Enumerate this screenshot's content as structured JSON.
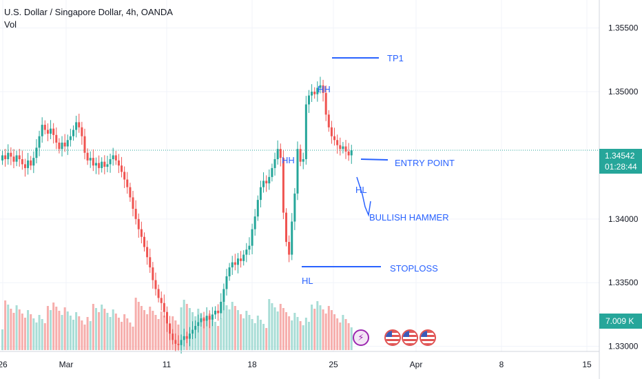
{
  "header": {
    "title": "U.S. Dollar / Singapore Dollar, 4h, OANDA",
    "volume_label": "Vol"
  },
  "price_badge": {
    "price": "1.34542",
    "countdown": "01:28:44"
  },
  "volume_badge": {
    "value": "7.009 K"
  },
  "colors": {
    "up": "#26a69a",
    "down": "#ef5350",
    "up_volume": "#9ed9d2",
    "down_volume": "#f5a5a3",
    "annotation": "#2962ff",
    "grid": "#f0f3fa",
    "axis_text": "#131722"
  },
  "icons": [
    "lightning-icon",
    "us-flag-icon",
    "us-flag-icon",
    "us-flag-icon"
  ],
  "chart_data": {
    "type": "candlestick",
    "title": "U.S. Dollar / Singapore Dollar, 4h, OANDA",
    "ylim": [
      1.3296,
      1.3572
    ],
    "y_ticks": [
      "1.35500",
      "1.35000",
      "1.34000",
      "1.33500",
      "1.33000"
    ],
    "x_ticks": [
      "26",
      "Mar",
      "11",
      "18",
      "25",
      "Apr",
      "8",
      "15"
    ],
    "grid": true,
    "price_series": {
      "name": "USDSGD 4h close (approx.)",
      "close": [
        1.345,
        1.3447,
        1.3452,
        1.3449,
        1.3445,
        1.345,
        1.3447,
        1.3443,
        1.344,
        1.3446,
        1.3442,
        1.3448,
        1.3456,
        1.3465,
        1.3474,
        1.347,
        1.3467,
        1.3471,
        1.3466,
        1.346,
        1.3455,
        1.346,
        1.3457,
        1.3462,
        1.3465,
        1.347,
        1.3476,
        1.3472,
        1.3465,
        1.3452,
        1.3446,
        1.3448,
        1.3442,
        1.3444,
        1.344,
        1.3445,
        1.3441,
        1.3443,
        1.3447,
        1.345,
        1.3446,
        1.3442,
        1.3437,
        1.3431,
        1.3425,
        1.3417,
        1.3408,
        1.34,
        1.3392,
        1.3386,
        1.3378,
        1.337,
        1.3362,
        1.3352,
        1.3345,
        1.3338,
        1.3334,
        1.3327,
        1.3318,
        1.331,
        1.3305,
        1.3302,
        1.3301,
        1.3305,
        1.3308,
        1.3306,
        1.331,
        1.3313,
        1.3316,
        1.3319,
        1.3322,
        1.332,
        1.3324,
        1.3321,
        1.3325,
        1.3328,
        1.3326,
        1.3335,
        1.3345,
        1.3355,
        1.3362,
        1.3366,
        1.3364,
        1.3369,
        1.3367,
        1.3372,
        1.3376,
        1.3379,
        1.3392,
        1.3402,
        1.3415,
        1.3425,
        1.343,
        1.3428,
        1.3433,
        1.344,
        1.3447,
        1.3455,
        1.3448,
        1.3405,
        1.3382,
        1.3372,
        1.3398,
        1.342,
        1.3455,
        1.3445,
        1.3447,
        1.349,
        1.3497,
        1.35,
        1.3498,
        1.3503,
        1.3505,
        1.3499,
        1.3482,
        1.3472,
        1.3465,
        1.3462,
        1.3458,
        1.3455,
        1.3457,
        1.3453,
        1.345,
        1.3454
      ]
    },
    "volume_series": {
      "name": "Vol",
      "last_value": "7.009 K"
    },
    "annotations": [
      {
        "text": "TP1"
      },
      {
        "text": "HH"
      },
      {
        "text": "HH"
      },
      {
        "text": "ENTRY POINT"
      },
      {
        "text": "HL"
      },
      {
        "text": "BULLISH HAMMER"
      },
      {
        "text": "STOPLOSS"
      },
      {
        "text": "HL"
      }
    ]
  }
}
